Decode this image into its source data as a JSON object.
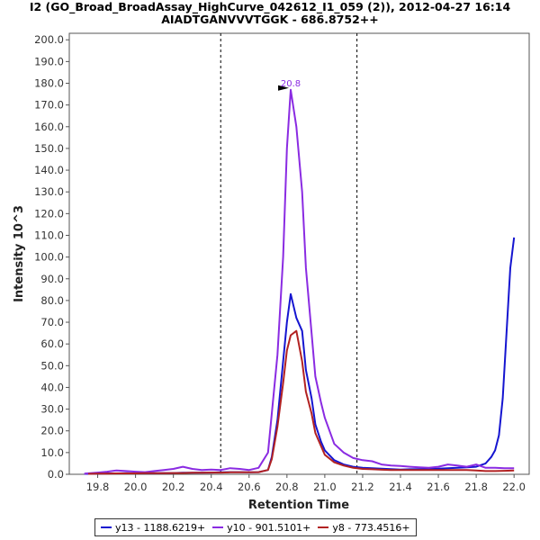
{
  "chart_data": {
    "type": "line",
    "title": "I2 (GO_Broad_BroadAssay_HighCurve_042612_I1_059 (2)), 2012-04-27 16:14",
    "subtitle": "AIADTGANVVVTGGK - 686.8752++",
    "xlabel": "Retention Time",
    "ylabel": "Intensity 10^3",
    "xlim": [
      19.65,
      22.08
    ],
    "ylim": [
      0,
      203
    ],
    "xticks": [
      "19.8",
      "20.0",
      "20.2",
      "20.4",
      "20.6",
      "20.8",
      "21.0",
      "21.2",
      "21.4",
      "21.6",
      "21.8",
      "22.0"
    ],
    "yticks": [
      "0.0",
      "10.0",
      "20.0",
      "30.0",
      "40.0",
      "50.0",
      "60.0",
      "70.0",
      "80.0",
      "90.0",
      "100.0",
      "110.0",
      "120.0",
      "130.0",
      "140.0",
      "150.0",
      "160.0",
      "170.0",
      "180.0",
      "190.0",
      "200.0"
    ],
    "vlines": [
      20.45,
      21.17
    ],
    "peak_annotation": {
      "x": 20.82,
      "y": 177,
      "label": "20.8"
    },
    "legend_position": "bottom",
    "grid": false,
    "series": [
      {
        "name": "y13 - 1188.6219+",
        "color": "#1515d0",
        "x": [
          19.73,
          19.8,
          19.85,
          19.9,
          19.95,
          20.0,
          20.05,
          20.1,
          20.15,
          20.2,
          20.25,
          20.3,
          20.35,
          20.4,
          20.45,
          20.5,
          20.55,
          20.6,
          20.65,
          20.7,
          20.72,
          20.75,
          20.78,
          20.8,
          20.82,
          20.85,
          20.88,
          20.9,
          20.93,
          20.95,
          20.98,
          21.0,
          21.05,
          21.1,
          21.15,
          21.2,
          21.25,
          21.3,
          21.35,
          21.4,
          21.45,
          21.5,
          21.55,
          21.6,
          21.65,
          21.7,
          21.75,
          21.8,
          21.85,
          21.88,
          21.9,
          21.92,
          21.94,
          21.96,
          21.98,
          22.0
        ],
        "y": [
          0.2,
          0.3,
          0.4,
          0.4,
          0.5,
          0.4,
          0.5,
          0.5,
          0.6,
          0.6,
          0.7,
          0.7,
          0.8,
          0.8,
          0.9,
          1.0,
          1.0,
          0.9,
          1.0,
          2.0,
          8.0,
          25.0,
          52.0,
          70.0,
          83.0,
          72.0,
          66.0,
          48.0,
          35.0,
          23.0,
          15.0,
          11.0,
          6.5,
          4.5,
          3.5,
          3.0,
          2.8,
          2.6,
          2.4,
          2.2,
          2.3,
          2.4,
          2.5,
          2.6,
          2.8,
          3.0,
          3.2,
          3.5,
          5.0,
          8.0,
          11.0,
          18.0,
          35.0,
          65.0,
          95.0,
          109.0
        ]
      },
      {
        "name": "y10 - 901.5101+",
        "color": "#8a2be2",
        "x": [
          19.73,
          19.8,
          19.85,
          19.9,
          19.95,
          20.0,
          20.05,
          20.1,
          20.15,
          20.2,
          20.25,
          20.3,
          20.35,
          20.4,
          20.45,
          20.5,
          20.55,
          20.6,
          20.65,
          20.7,
          20.72,
          20.75,
          20.78,
          20.8,
          20.82,
          20.85,
          20.88,
          20.9,
          20.93,
          20.95,
          20.98,
          21.0,
          21.05,
          21.1,
          21.15,
          21.2,
          21.25,
          21.3,
          21.35,
          21.4,
          21.45,
          21.5,
          21.55,
          21.6,
          21.65,
          21.7,
          21.75,
          21.8,
          21.85,
          21.9,
          21.95,
          22.0
        ],
        "y": [
          0.3,
          0.8,
          1.2,
          1.8,
          1.5,
          1.2,
          1.0,
          1.5,
          2.0,
          2.5,
          3.5,
          2.5,
          2.0,
          2.2,
          2.0,
          2.8,
          2.5,
          2.0,
          3.0,
          10.0,
          28.0,
          55.0,
          100.0,
          150.0,
          177.0,
          160.0,
          130.0,
          95.0,
          65.0,
          45.0,
          33.0,
          26.0,
          14.0,
          10.0,
          7.5,
          6.5,
          6.0,
          4.5,
          4.0,
          3.8,
          3.5,
          3.2,
          3.0,
          3.5,
          4.5,
          4.0,
          3.5,
          4.5,
          3.0,
          3.0,
          2.8,
          2.8
        ]
      },
      {
        "name": "y8 - 773.4516+",
        "color": "#b22222",
        "x": [
          19.75,
          19.8,
          19.85,
          19.9,
          19.95,
          20.0,
          20.05,
          20.1,
          20.15,
          20.2,
          20.25,
          20.3,
          20.35,
          20.4,
          20.45,
          20.5,
          20.55,
          20.6,
          20.65,
          20.7,
          20.72,
          20.75,
          20.78,
          20.8,
          20.82,
          20.85,
          20.88,
          20.9,
          20.93,
          20.95,
          20.98,
          21.0,
          21.05,
          21.1,
          21.15,
          21.2,
          21.25,
          21.3,
          21.35,
          21.4,
          21.45,
          21.5,
          21.55,
          21.6,
          21.65,
          21.7,
          21.75,
          21.8,
          21.85,
          21.9,
          21.95,
          22.0
        ],
        "y": [
          0.2,
          0.3,
          0.3,
          0.4,
          0.4,
          0.4,
          0.5,
          0.5,
          0.5,
          0.6,
          0.6,
          0.7,
          0.7,
          0.8,
          0.8,
          0.9,
          0.9,
          0.9,
          1.0,
          2.0,
          7.0,
          22.0,
          42.0,
          57.0,
          64.0,
          66.0,
          52.0,
          38.0,
          28.0,
          19.0,
          13.0,
          9.0,
          5.5,
          4.0,
          3.0,
          2.5,
          2.3,
          2.1,
          2.0,
          2.0,
          2.0,
          2.0,
          2.0,
          2.0,
          2.0,
          2.0,
          2.0,
          1.8,
          1.5,
          1.5,
          1.6,
          1.8
        ]
      }
    ]
  }
}
